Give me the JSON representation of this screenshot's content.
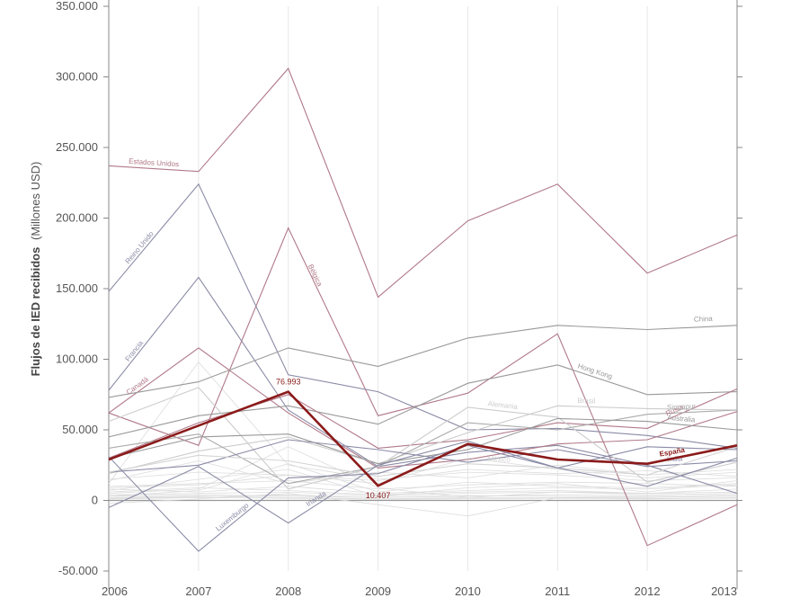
{
  "chart_data": {
    "type": "line",
    "ylabel_bold": "Flujos de IED recibidos",
    "ylabel_normal": "(Millones USD)",
    "ylim": [
      -50000,
      350000
    ],
    "y_ticks": [
      -50000,
      0,
      50000,
      100000,
      150000,
      200000,
      250000,
      300000,
      350000
    ],
    "y_tick_labels": [
      "-50.000",
      "0",
      "50.000",
      "100.000",
      "150.000",
      "200.000",
      "250.000",
      "300.000",
      "350.000"
    ],
    "x": [
      "2006",
      "2007",
      "2008",
      "2009",
      "2010",
      "2011",
      "2012",
      "2013"
    ],
    "highlight": {
      "name": "España",
      "color": "#8b1a1a",
      "values": [
        29000,
        53000,
        76993,
        10407,
        40000,
        29000,
        26000,
        39000
      ],
      "point_labels": [
        {
          "index": 2,
          "text": "76.993"
        },
        {
          "index": 3,
          "text": "10.407"
        }
      ]
    },
    "series": [
      {
        "name": "Estados Unidos",
        "color": "#b07888",
        "values": [
          237000,
          233000,
          306000,
          144000,
          198000,
          224000,
          161000,
          188000
        ],
        "label_index": 0
      },
      {
        "name": "Bélgica",
        "color": "#b07888",
        "values": [
          62000,
          39000,
          193000,
          60000,
          76000,
          118000,
          -32000,
          -3000
        ],
        "label_index": 2
      },
      {
        "name": "Reino Unido",
        "color": "#8a8aa6",
        "values": [
          148000,
          224000,
          89000,
          77000,
          50000,
          51000,
          46000,
          37000
        ],
        "label_index": 0
      },
      {
        "name": "Francia",
        "color": "#8a8aa6",
        "values": [
          78000,
          158000,
          64000,
          24000,
          34000,
          39000,
          25000,
          5000
        ],
        "label_index": 0
      },
      {
        "name": "Canadá",
        "color": "#b07888",
        "values": [
          62000,
          108000,
          62000,
          23000,
          29000,
          40000,
          43000,
          63000
        ],
        "label_index": 0
      },
      {
        "name": "China",
        "color": "#999999",
        "values": [
          73000,
          84000,
          108000,
          95000,
          115000,
          124000,
          121000,
          124000
        ],
        "label_index": 7
      },
      {
        "name": "Hong Kong",
        "color": "#999999",
        "values": [
          45000,
          60000,
          67000,
          54000,
          83000,
          96000,
          75000,
          77000
        ],
        "label_index": 5
      },
      {
        "name": "Rusia",
        "color": "#b07888",
        "values": [
          30000,
          55000,
          75000,
          37000,
          43000,
          55000,
          51000,
          79000
        ],
        "label_index": 6
      },
      {
        "name": "Brasil",
        "color": "#cccccc",
        "values": [
          19000,
          35000,
          45000,
          26000,
          48000,
          67000,
          65000,
          64000
        ],
        "label_index": 5
      },
      {
        "name": "Singapur",
        "color": "#aaaaaa",
        "values": [
          37000,
          47000,
          12000,
          24000,
          55000,
          50000,
          61000,
          64000
        ],
        "label_index": 6
      },
      {
        "name": "Alemania",
        "color": "#cccccc",
        "values": [
          56000,
          80000,
          8000,
          24000,
          66000,
          59000,
          13000,
          27000
        ],
        "label_index": 4
      },
      {
        "name": "Australia",
        "color": "#999999",
        "values": [
          30000,
          45000,
          47000,
          26000,
          36000,
          58000,
          56000,
          50000
        ],
        "label_index": 6
      },
      {
        "name": "India",
        "color": "#8a8aa6",
        "values": [
          20000,
          25000,
          43000,
          36000,
          27000,
          36000,
          24000,
          28000
        ],
        "label_index": 6
      },
      {
        "name": "México",
        "color": "#d4d4d4",
        "values": [
          20000,
          32000,
          28000,
          17000,
          26000,
          23000,
          18000,
          38000
        ],
        "label_index": 4
      },
      {
        "name": "Luxemburgo",
        "color": "#8a8aa6",
        "values": [
          31000,
          -36000,
          16000,
          19000,
          39000,
          23000,
          10000,
          30000
        ],
        "label_index": 1
      },
      {
        "name": "Irlanda",
        "color": "#8a8aa6",
        "values": [
          -5000,
          24000,
          -16000,
          25000,
          42000,
          23000,
          38000,
          36000
        ],
        "label_index": 2
      }
    ],
    "background_series": [
      [
        12000,
        98000,
        25000,
        15000,
        20000,
        18000,
        14000,
        16000
      ],
      [
        5000,
        8000,
        38000,
        9000,
        2000,
        6000,
        5000,
        6000
      ],
      [
        15000,
        20000,
        18000,
        12000,
        30000,
        22000,
        16000,
        20000
      ],
      [
        10000,
        12000,
        14000,
        8000,
        11000,
        13000,
        12000,
        10000
      ],
      [
        8000,
        6000,
        10000,
        5000,
        7000,
        9000,
        8000,
        11000
      ],
      [
        6000,
        9000,
        7000,
        4000,
        6000,
        7000,
        5000,
        8000
      ],
      [
        4000,
        5000,
        6000,
        3000,
        5000,
        6000,
        4000,
        5000
      ],
      [
        3000,
        4000,
        3000,
        2000,
        3000,
        4000,
        3000,
        4000
      ],
      [
        2000,
        3000,
        2000,
        1000,
        2000,
        2000,
        2000,
        3000
      ],
      [
        1000,
        2000,
        1500,
        800,
        1200,
        1500,
        1300,
        1600
      ],
      [
        -2000,
        1000,
        5000,
        -3000,
        -11000,
        2000,
        1000,
        2000
      ],
      [
        7000,
        15000,
        22000,
        3000,
        9000,
        12000,
        6000,
        14000
      ],
      [
        14000,
        28000,
        12000,
        20000,
        16000,
        25000,
        18000,
        22000
      ],
      [
        9000,
        11000,
        18000,
        14000,
        22000,
        19000,
        21000,
        17000
      ],
      [
        3000,
        7000,
        26000,
        6000,
        13000,
        10000,
        9000,
        12000
      ],
      [
        1500,
        2500,
        4000,
        2000,
        3500,
        2800,
        2200,
        3000
      ]
    ]
  }
}
